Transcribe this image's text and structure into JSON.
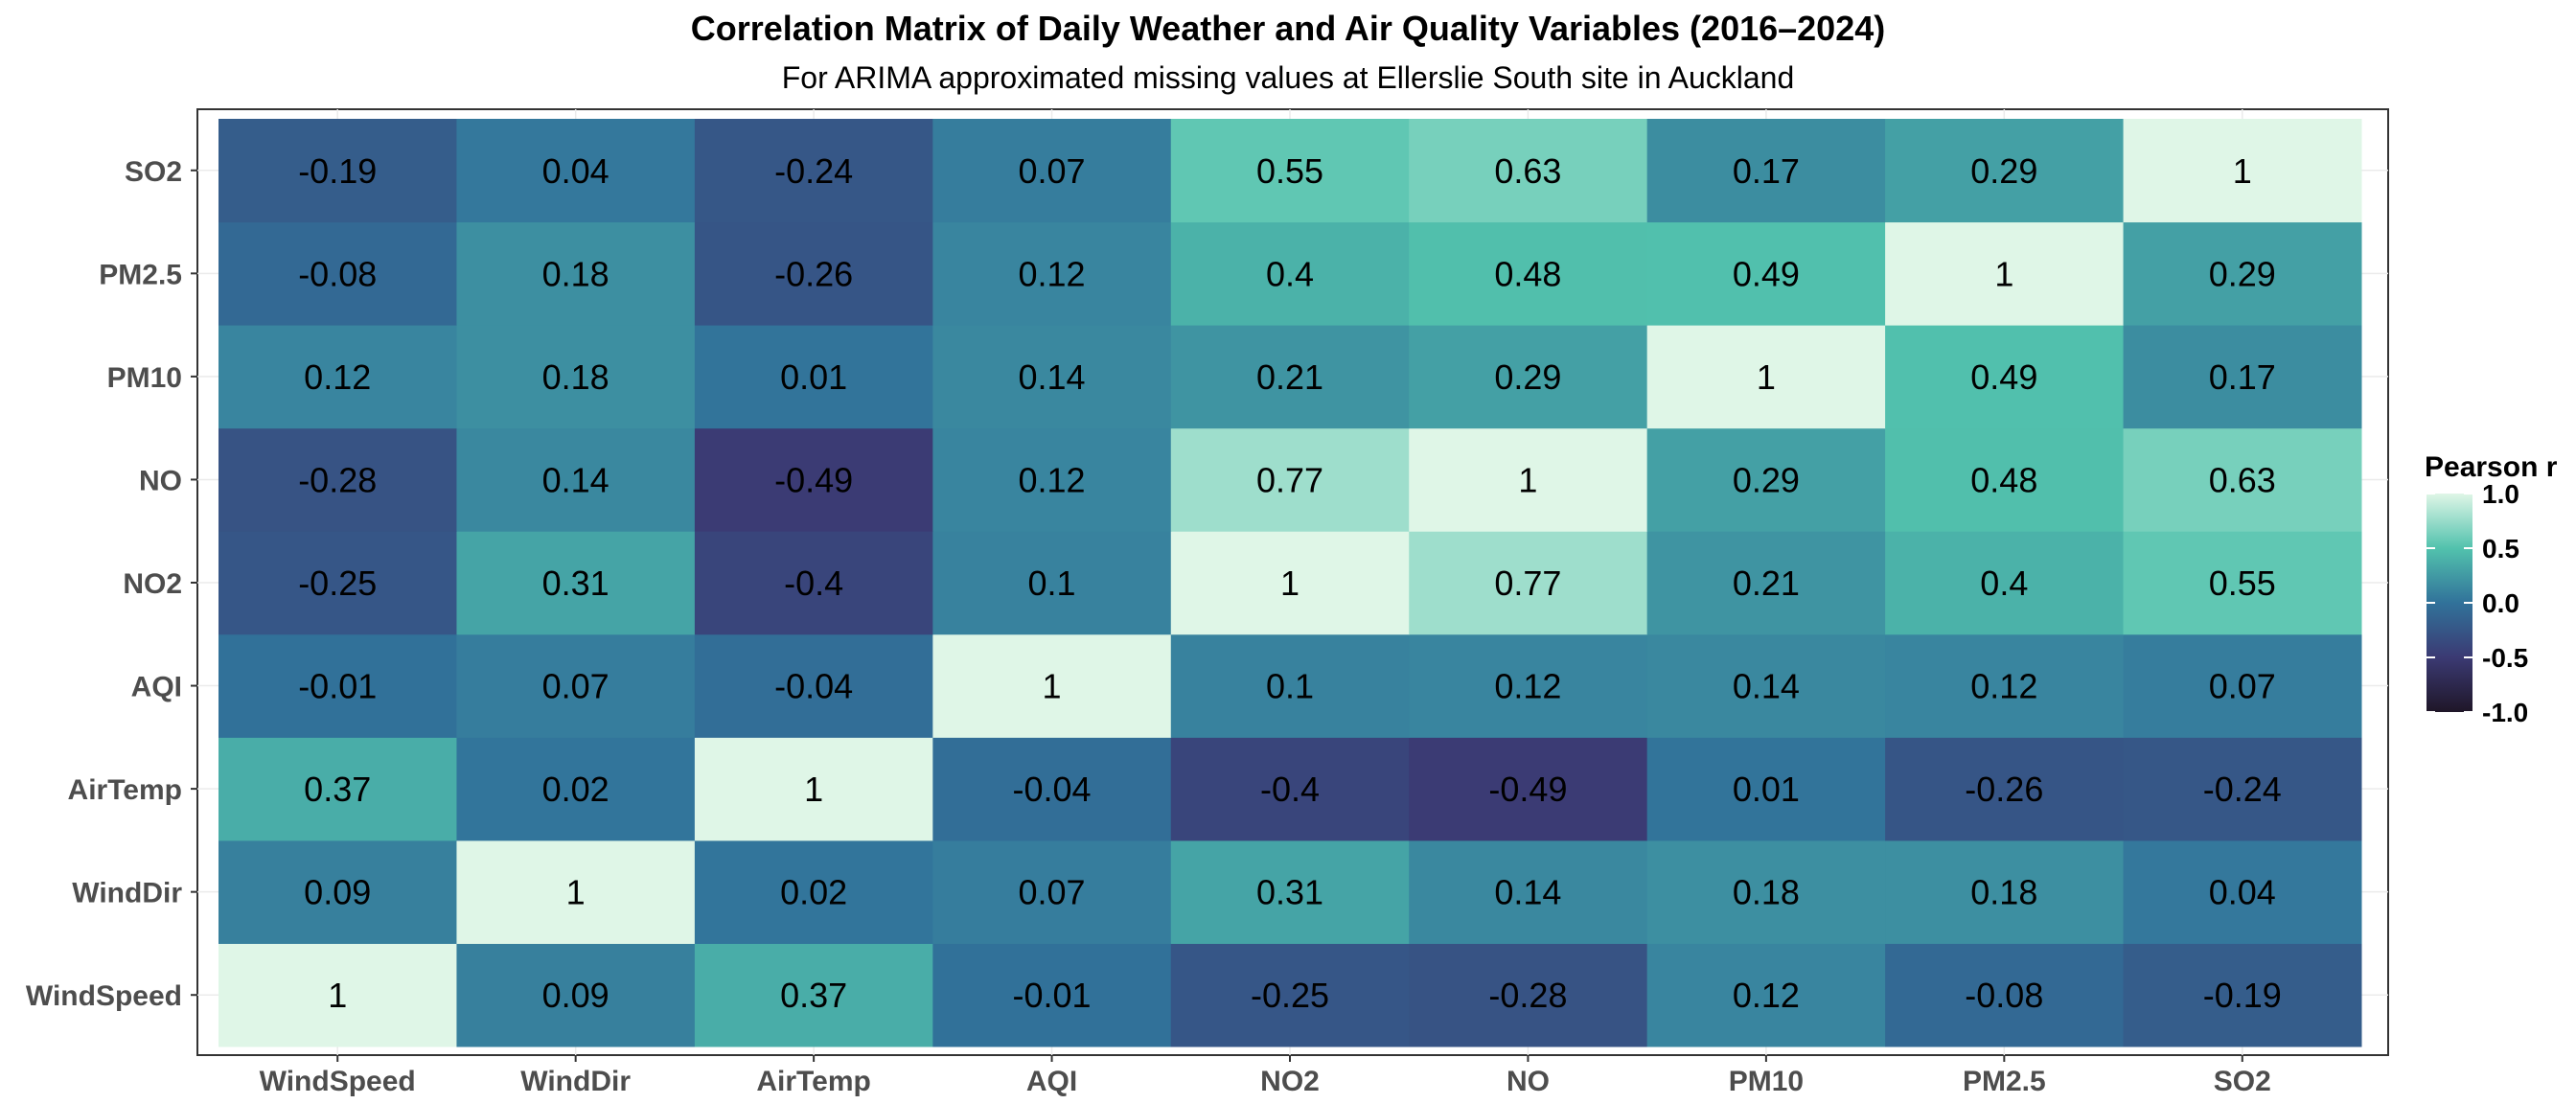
{
  "chart_data": {
    "type": "heatmap",
    "title": "Correlation Matrix of Daily Weather and Air Quality Variables (2016–2024)",
    "subtitle": "For  ARIMA approximated missing values at Ellerslie South site  in Auckland",
    "x_categories": [
      "WindSpeed",
      "WindDir",
      "AirTemp",
      "AQI",
      "NO2",
      "NO",
      "PM10",
      "PM2.5",
      "SO2"
    ],
    "y_categories": [
      "WindSpeed",
      "WindDir",
      "AirTemp",
      "AQI",
      "NO2",
      "NO",
      "PM10",
      "PM2.5",
      "SO2"
    ],
    "values": [
      [
        1,
        0.09,
        0.37,
        -0.01,
        -0.25,
        -0.28,
        0.12,
        -0.08,
        -0.19
      ],
      [
        0.09,
        1,
        0.02,
        0.07,
        0.31,
        0.14,
        0.18,
        0.18,
        0.04
      ],
      [
        0.37,
        0.02,
        1,
        -0.04,
        -0.4,
        -0.49,
        0.01,
        -0.26,
        -0.24
      ],
      [
        -0.01,
        0.07,
        -0.04,
        1,
        0.1,
        0.12,
        0.14,
        0.12,
        0.07
      ],
      [
        -0.25,
        0.31,
        -0.4,
        0.1,
        1,
        0.77,
        0.21,
        0.4,
        0.55
      ],
      [
        -0.28,
        0.14,
        -0.49,
        0.12,
        0.77,
        1,
        0.29,
        0.48,
        0.63
      ],
      [
        0.12,
        0.18,
        0.01,
        0.14,
        0.21,
        0.29,
        1,
        0.49,
        0.17
      ],
      [
        -0.08,
        0.18,
        -0.26,
        0.12,
        0.4,
        0.48,
        0.49,
        1,
        0.29
      ],
      [
        -0.19,
        0.04,
        -0.24,
        0.07,
        0.55,
        0.63,
        0.17,
        0.29,
        1
      ]
    ],
    "legend": {
      "title": "Pearson r",
      "range": [
        -1.0,
        1.0
      ],
      "ticks": [
        "1.0",
        "0.5",
        "0.0",
        "-0.5",
        "-1.0"
      ],
      "tick_values": [
        1.0,
        0.5,
        0.0,
        -0.5,
        -1.0
      ],
      "placement": "right"
    },
    "color_scale": {
      "stops": [
        -1.0,
        -0.5,
        0.0,
        0.5,
        1.0
      ],
      "colors": [
        "#1f1628",
        "#3b3a73",
        "#31729a",
        "#52c2ad",
        "#dff6e7"
      ]
    },
    "grid": true
  }
}
